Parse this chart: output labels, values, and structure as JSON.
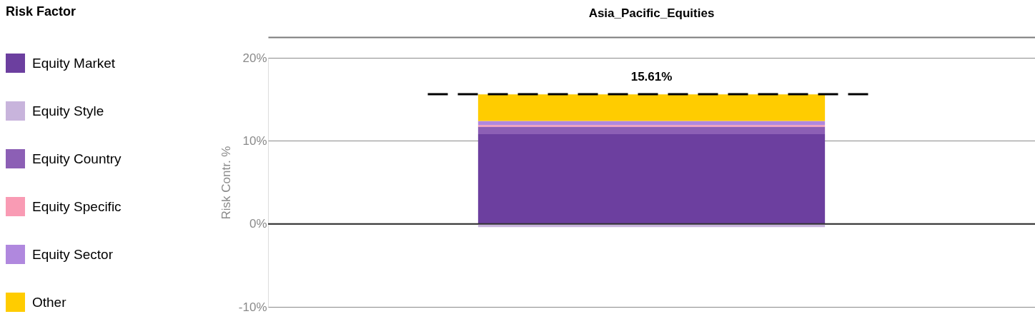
{
  "chart_data": {
    "type": "bar",
    "stacked": true,
    "title": "Asia_Pacific_Equities",
    "categories": [
      null
    ],
    "ylabel": "Risk Contr. %",
    "legend_title": "Risk Factor",
    "legend": "left",
    "grid": "y",
    "ylim": [
      -10,
      20
    ],
    "yticks": [
      {
        "value": -10,
        "label": "-10%"
      },
      {
        "value": 0,
        "label": "0%"
      },
      {
        "value": 10,
        "label": "10%"
      },
      {
        "value": 20,
        "label": "20%"
      }
    ],
    "series": [
      {
        "name": "Equity Market",
        "color": "#6c3f9f",
        "values": [
          10.8
        ]
      },
      {
        "name": "Equity Style",
        "color": "#c8b4dc",
        "values": [
          -0.4
        ]
      },
      {
        "name": "Equity Country",
        "color": "#8c5fb5",
        "values": [
          0.9
        ]
      },
      {
        "name": "Equity Specific",
        "color": "#f99bb4",
        "values": [
          0.2
        ]
      },
      {
        "name": "Equity Sector",
        "color": "#b088de",
        "values": [
          0.5
        ]
      },
      {
        "name": "Other",
        "color": "#ffcc00",
        "values": [
          3.2
        ]
      }
    ],
    "ref_lines": [
      {
        "axis": "y",
        "value": 0,
        "color": "#333333"
      },
      {
        "axis": "y",
        "value": 15.61,
        "label": "15.61%",
        "line_style": "dashed",
        "color": "#000000"
      }
    ]
  }
}
